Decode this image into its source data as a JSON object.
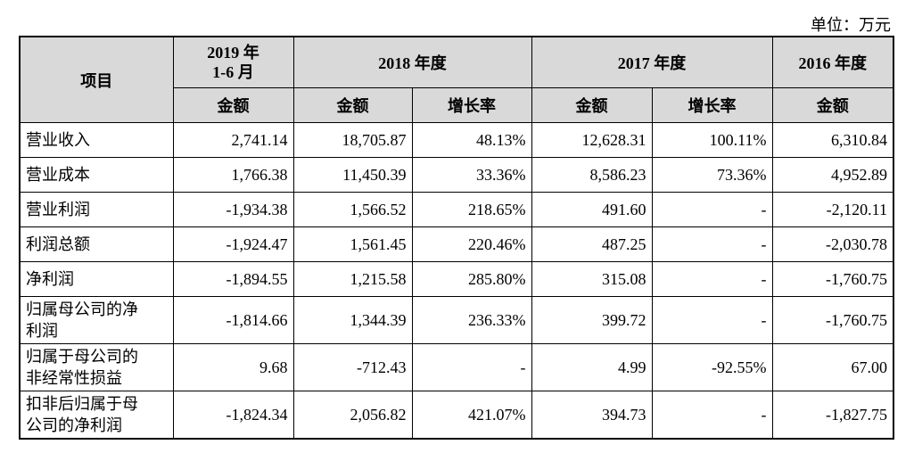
{
  "unit_label": "单位：万元",
  "header": {
    "item": "项目",
    "period_2019_line1": "2019 年",
    "period_2019_line2": "1-6 月",
    "period_2018": "2018 年度",
    "period_2017": "2017 年度",
    "period_2016": "2016 年度",
    "amount": "金额",
    "growth": "增长率"
  },
  "rows": [
    {
      "label": "营业收入",
      "v2019": "2,741.14",
      "v2018": "18,705.87",
      "g2018": "48.13%",
      "v2017": "12,628.31",
      "g2017": "100.11%",
      "v2016": "6,310.84"
    },
    {
      "label": "营业成本",
      "v2019": "1,766.38",
      "v2018": "11,450.39",
      "g2018": "33.36%",
      "v2017": "8,586.23",
      "g2017": "73.36%",
      "v2016": "4,952.89"
    },
    {
      "label": "营业利润",
      "v2019": "-1,934.38",
      "v2018": "1,566.52",
      "g2018": "218.65%",
      "v2017": "491.60",
      "g2017": "-",
      "v2016": "-2,120.11"
    },
    {
      "label": "利润总额",
      "v2019": "-1,924.47",
      "v2018": "1,561.45",
      "g2018": "220.46%",
      "v2017": "487.25",
      "g2017": "-",
      "v2016": "-2,030.78"
    },
    {
      "label": "净利润",
      "v2019": "-1,894.55",
      "v2018": "1,215.58",
      "g2018": "285.80%",
      "v2017": "315.08",
      "g2017": "-",
      "v2016": "-1,760.75"
    },
    {
      "label_line1": "归属母公司的净",
      "label_line2": "利润",
      "v2019": "-1,814.66",
      "v2018": "1,344.39",
      "g2018": "236.33%",
      "v2017": "399.72",
      "g2017": "-",
      "v2016": "-1,760.75"
    },
    {
      "label_line1": "归属于母公司的",
      "label_line2": "非经常性损益",
      "v2019": "9.68",
      "v2018": "-712.43",
      "g2018": "-",
      "v2017": "4.99",
      "g2017": "-92.55%",
      "v2016": "67.00"
    },
    {
      "label_line1": "扣非后归属于母",
      "label_line2": "公司的净利润",
      "v2019": "-1,824.34",
      "v2018": "2,056.82",
      "g2018": "421.07%",
      "v2017": "394.73",
      "g2017": "-",
      "v2016": "-1,827.75"
    }
  ]
}
